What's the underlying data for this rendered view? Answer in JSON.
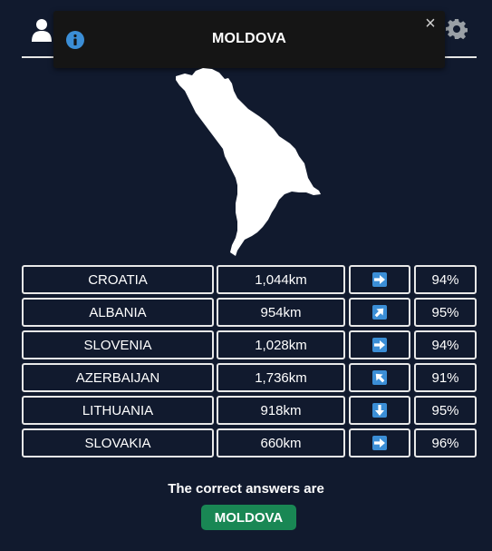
{
  "toast": {
    "title": "MOLDOVA"
  },
  "guesses": [
    {
      "country": "CROATIA",
      "distance": "1,044km",
      "direction": "east",
      "proximity": "94%"
    },
    {
      "country": "ALBANIA",
      "distance": "954km",
      "direction": "northeast",
      "proximity": "95%"
    },
    {
      "country": "SLOVENIA",
      "distance": "1,028km",
      "direction": "east",
      "proximity": "94%"
    },
    {
      "country": "AZERBAIJAN",
      "distance": "1,736km",
      "direction": "northwest",
      "proximity": "91%"
    },
    {
      "country": "LITHUANIA",
      "distance": "918km",
      "direction": "south",
      "proximity": "95%"
    },
    {
      "country": "SLOVAKIA",
      "distance": "660km",
      "direction": "east",
      "proximity": "96%"
    }
  ],
  "answer": {
    "label": "The correct answers are",
    "country": "MOLDOVA"
  },
  "colors": {
    "background": "#111a2e",
    "answer_badge": "#198754",
    "arrow_tile": "#3b8ed6",
    "info": "#3b8ed6"
  },
  "icons": {
    "header_left": "user-icon",
    "header_right": "gear-icon",
    "toast": "info-icon",
    "close": "close-icon"
  }
}
